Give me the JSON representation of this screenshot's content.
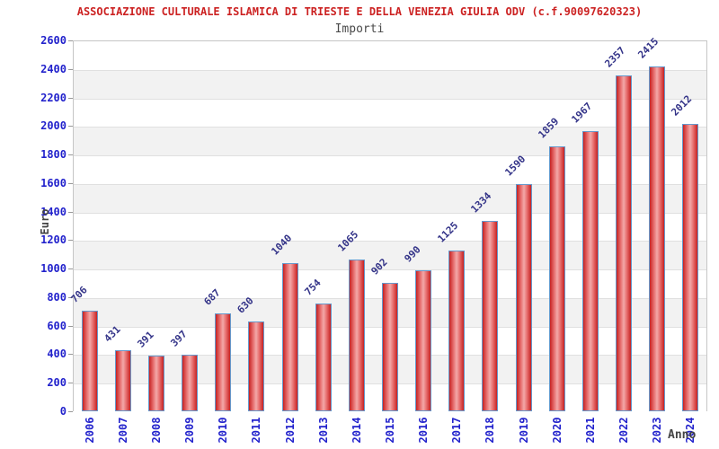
{
  "title": "ASSOCIAZIONE CULTURALE ISLAMICA DI TRIESTE E DELLA VENEZIA GIULIA ODV (c.f.90097620323)",
  "subtitle": "Importi",
  "chart_data": {
    "type": "bar",
    "title": "Importi",
    "xlabel": "Anno",
    "ylabel": "Euro",
    "categories": [
      "2006",
      "2007",
      "2008",
      "2009",
      "2010",
      "2011",
      "2012",
      "2013",
      "2014",
      "2015",
      "2016",
      "2017",
      "2018",
      "2019",
      "2020",
      "2021",
      "2022",
      "2023",
      "2024"
    ],
    "values": [
      706,
      431,
      391,
      397,
      687,
      630,
      1040,
      754,
      1065,
      902,
      990,
      1125,
      1334,
      1590,
      1859,
      1967,
      2357,
      2415,
      2012
    ],
    "ylim": [
      0,
      2600
    ],
    "ytick_step": 200,
    "grid": "on",
    "plot_background": "alternating horizontal bands every 200",
    "legend": "none"
  },
  "colors": {
    "title_text": "#cc2222",
    "subtitle_text": "#4a4a4a",
    "axis_title_text": "#444444",
    "tick_label_text": "#2222cc",
    "value_label_text": "#333388",
    "bar_border": "#6699cc",
    "bar_edge_red": "#c62222",
    "bar_mid_red": "#e87272",
    "bar_highlight": "#f3a8a8",
    "band_gray": "#f2f2f2",
    "gridline": "#e0e0e0",
    "tick_mark": "#999999"
  }
}
